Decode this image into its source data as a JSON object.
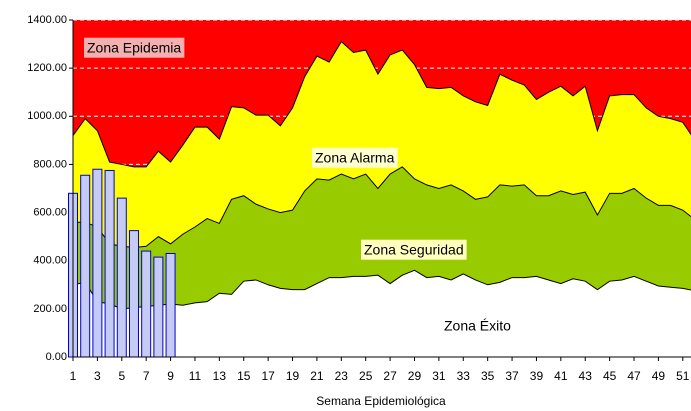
{
  "chart_data": {
    "type": "area",
    "x_label": "Semana Epidemiológica",
    "x": [
      1,
      2,
      3,
      4,
      5,
      6,
      7,
      8,
      9,
      10,
      11,
      12,
      13,
      14,
      15,
      16,
      17,
      18,
      19,
      20,
      21,
      22,
      23,
      24,
      25,
      26,
      27,
      28,
      29,
      30,
      31,
      32,
      33,
      34,
      35,
      36,
      37,
      38,
      39,
      40,
      41,
      42,
      43,
      44,
      45,
      46,
      47,
      48,
      49,
      50,
      51,
      52
    ],
    "xlim": [
      1,
      52
    ],
    "xticks": [
      1,
      3,
      5,
      7,
      9,
      11,
      13,
      15,
      17,
      19,
      21,
      23,
      25,
      27,
      29,
      31,
      33,
      35,
      37,
      39,
      41,
      43,
      45,
      47,
      49,
      51
    ],
    "ylim": [
      0,
      1400
    ],
    "yticks": [
      {
        "value": 0,
        "label": "0.00"
      },
      {
        "value": 200,
        "label": "200.00"
      },
      {
        "value": 400,
        "label": "400.00"
      },
      {
        "value": 600,
        "label": "600.00"
      },
      {
        "value": 800,
        "label": "800.00"
      },
      {
        "value": 1000,
        "label": "1000.00"
      },
      {
        "value": 1200,
        "label": "1200.00"
      },
      {
        "value": 1400,
        "label": "1400.00"
      }
    ],
    "grid": true,
    "background_zone": {
      "name": "Zona Epidemia",
      "color": "#ff0000"
    },
    "series": [
      {
        "name": "Zona Alarma",
        "color": "#ffff00",
        "values": [
          920,
          990,
          940,
          810,
          800,
          790,
          790,
          855,
          810,
          880,
          955,
          955,
          905,
          1040,
          1035,
          1005,
          1005,
          960,
          1035,
          1165,
          1250,
          1225,
          1310,
          1265,
          1275,
          1175,
          1255,
          1275,
          1215,
          1120,
          1115,
          1120,
          1085,
          1060,
          1045,
          1175,
          1150,
          1130,
          1070,
          1100,
          1125,
          1085,
          1125,
          940,
          1085,
          1090,
          1090,
          1035,
          1000,
          990,
          975,
          900
        ]
      },
      {
        "name": "Zona Seguridad",
        "color": "#99cc00",
        "values": [
          560,
          560,
          540,
          470,
          460,
          455,
          460,
          500,
          470,
          510,
          540,
          575,
          555,
          655,
          670,
          635,
          615,
          600,
          610,
          690,
          740,
          735,
          760,
          740,
          760,
          700,
          760,
          790,
          740,
          715,
          700,
          715,
          690,
          655,
          665,
          715,
          710,
          715,
          670,
          670,
          690,
          675,
          685,
          590,
          680,
          680,
          700,
          660,
          630,
          630,
          610,
          570
        ]
      },
      {
        "name": "Zona Éxito",
        "color": "#ffffff",
        "values": [
          300,
          310,
          230,
          220,
          200,
          205,
          210,
          215,
          220,
          215,
          225,
          230,
          265,
          260,
          315,
          320,
          300,
          285,
          280,
          280,
          305,
          330,
          330,
          335,
          335,
          340,
          305,
          340,
          360,
          330,
          335,
          320,
          345,
          320,
          300,
          310,
          330,
          330,
          335,
          320,
          305,
          325,
          315,
          280,
          315,
          320,
          335,
          315,
          295,
          290,
          285,
          275
        ]
      }
    ],
    "bars": {
      "color": "#c5cbf5",
      "values": [
        680,
        755,
        780,
        775,
        660,
        525,
        440,
        415,
        430
      ]
    }
  }
}
